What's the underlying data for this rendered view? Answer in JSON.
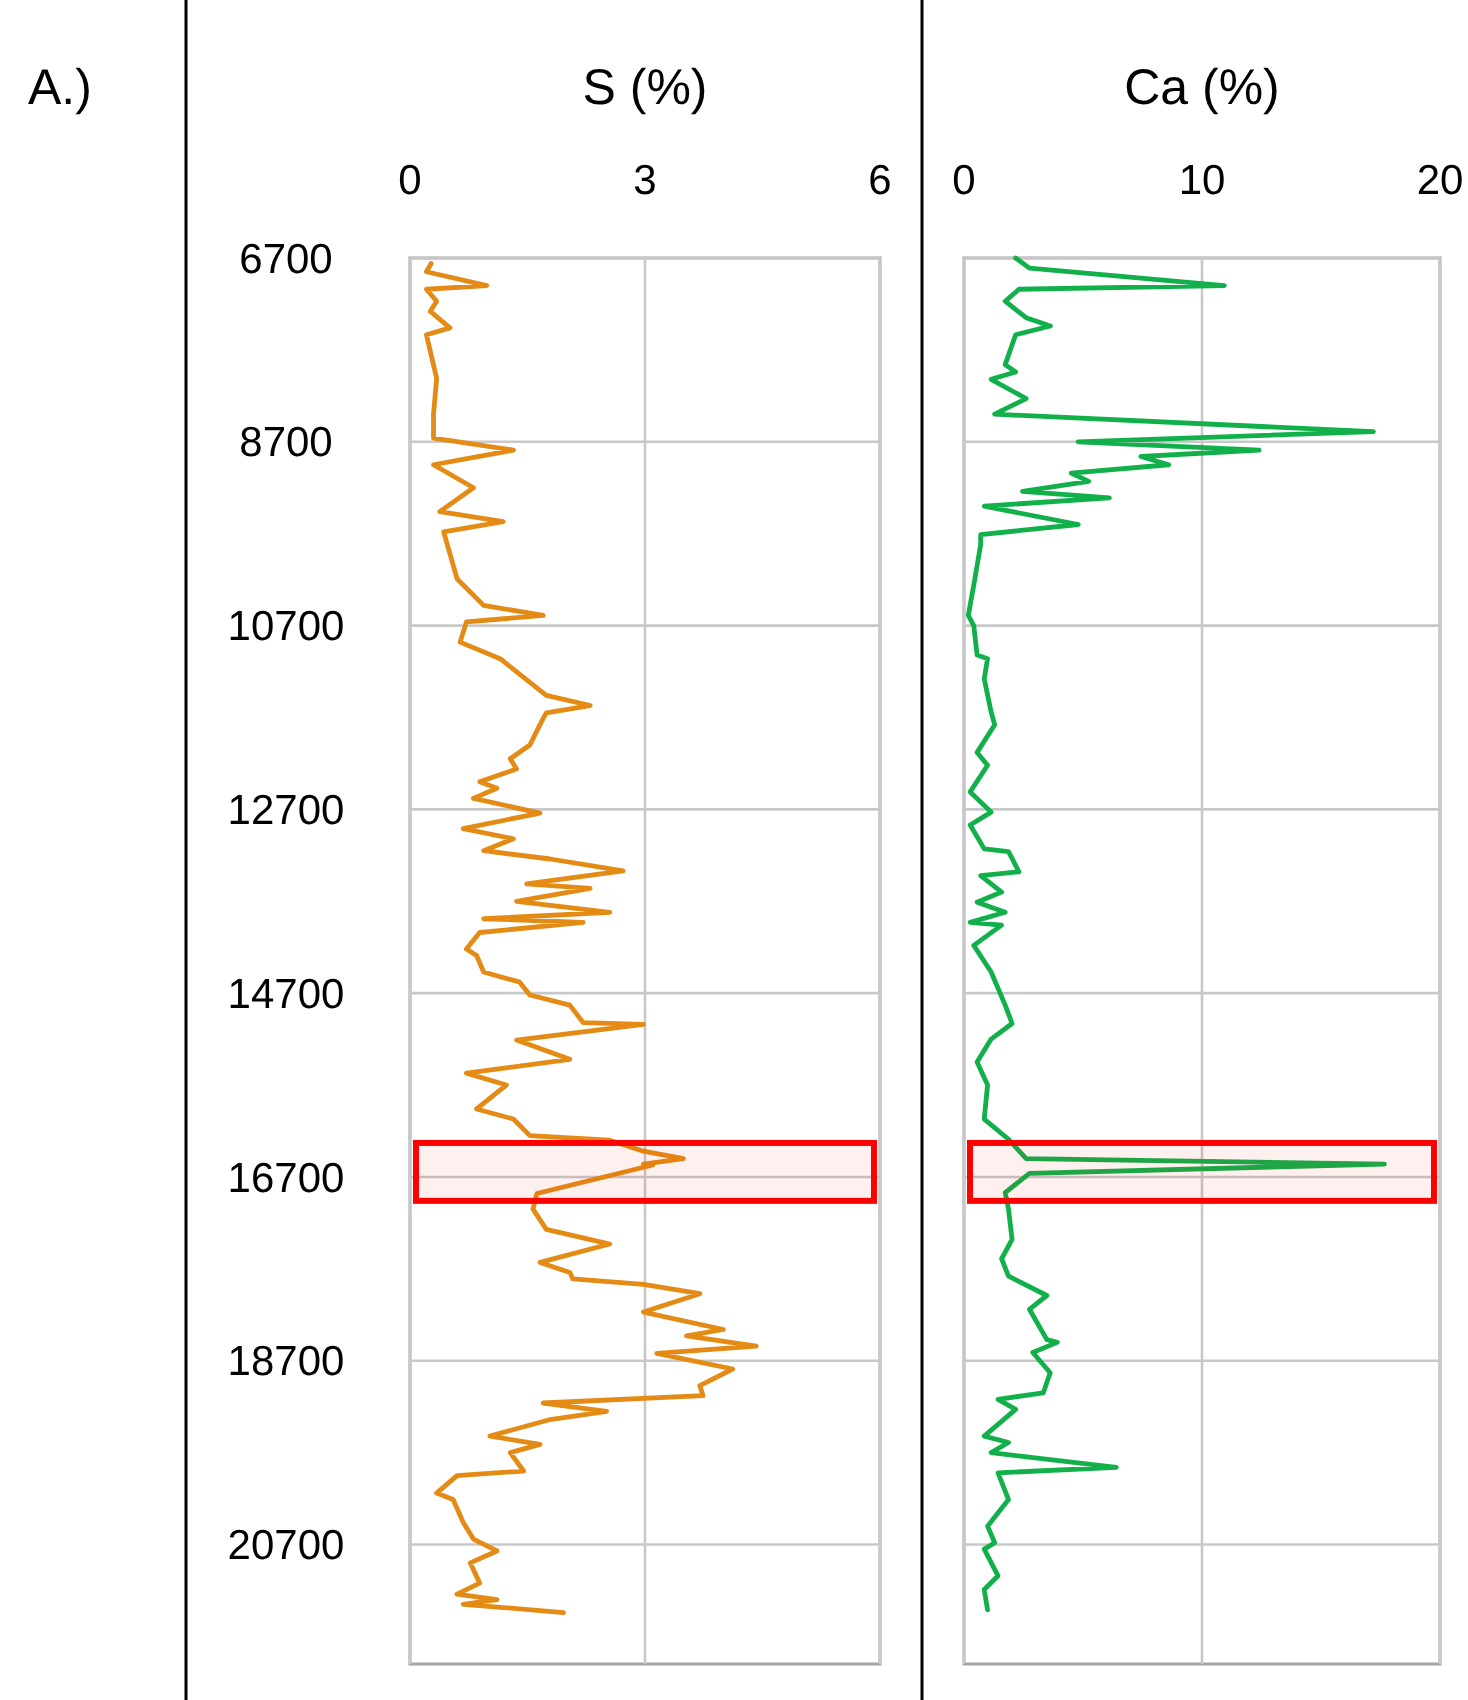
{
  "chart_data": [
    {
      "type": "line",
      "xlabel": "S (%)",
      "annotations": [
        "A.)"
      ],
      "xlim": [
        0,
        6
      ],
      "xticks": [
        0,
        3,
        6
      ],
      "ylim": [
        22000,
        6700
      ],
      "yticks": [
        6700,
        8700,
        10700,
        12700,
        14700,
        16700,
        18700,
        20700
      ],
      "grid": true,
      "bands": [
        {
          "axis": "y",
          "from": 16330,
          "to": 16960,
          "color": "#ff0000"
        }
      ],
      "series": [
        {
          "color": "#e38b14",
          "x": [
            0.27,
            0.21,
            0.98,
            0.21,
            0.34,
            0.26,
            0.51,
            0.21,
            0.34,
            0.3,
            0.3,
            1.32,
            0.3,
            0.81,
            0.38,
            1.19,
            0.43,
            0.6,
            0.94,
            1.7,
            0.72,
            0.64,
            1.15,
            1.74,
            2.3,
            1.74,
            1.7,
            1.53,
            1.28,
            1.36,
            0.89,
            1.11,
            0.81,
            1.66,
            0.68,
            1.32,
            0.94,
            1.79,
            2.72,
            1.49,
            2.3,
            1.36,
            2.55,
            0.94,
            2.21,
            0.89,
            0.72,
            0.85,
            0.94,
            1.4,
            1.53,
            2.04,
            2.21,
            2.98,
            1.36,
            2.04,
            0.72,
            1.23,
            0.85,
            1.32,
            1.53,
            2.55,
            2.98,
            3.49,
            2.98,
            3.1,
            1.62,
            1.57,
            1.74,
            2.55,
            1.66,
            2.04,
            2.08,
            2.98,
            3.7,
            2.98,
            4.0,
            3.53,
            4.42,
            3.15,
            4.12,
            3.7,
            3.74,
            1.7,
            2.51,
            1.79,
            1.02,
            1.66,
            1.28,
            1.45,
            0.6,
            0.34,
            0.55,
            0.68,
            0.81,
            1.11,
            0.77,
            0.89,
            0.6,
            1.11,
            0.68,
            1.96
          ],
          "values": [
            6760,
            6850,
            7000,
            7040,
            7170,
            7280,
            7460,
            7535,
            8010,
            8400,
            8660,
            8790,
            8950,
            9200,
            9460,
            9570,
            9680,
            10190,
            10480,
            10590,
            10660,
            10880,
            11060,
            11460,
            11570,
            11650,
            11710,
            12000,
            12150,
            12260,
            12400,
            12470,
            12580,
            12740,
            12910,
            13020,
            13150,
            13240,
            13370,
            13510,
            13560,
            13700,
            13820,
            13890,
            13930,
            14040,
            14220,
            14290,
            14470,
            14580,
            14720,
            14830,
            15020,
            15040,
            15210,
            15420,
            15570,
            15700,
            15960,
            16070,
            16250,
            16300,
            16420,
            16500,
            16560,
            16570,
            16880,
            17050,
            17270,
            17430,
            17630,
            17740,
            17810,
            17870,
            17970,
            18170,
            18360,
            18430,
            18540,
            18620,
            18790,
            18970,
            19080,
            19160,
            19250,
            19340,
            19520,
            19610,
            19700,
            19900,
            19950,
            20140,
            20210,
            20460,
            20640,
            20770,
            20900,
            21120,
            21240,
            21300,
            21350,
            21440
          ]
        }
      ]
    },
    {
      "type": "line",
      "xlabel": "Ca (%)",
      "xlim": [
        0,
        20
      ],
      "xticks": [
        0,
        10,
        20
      ],
      "ylim": [
        22000,
        6700
      ],
      "yticks": [
        6700,
        8700,
        10700,
        12700,
        14700,
        16700,
        18700,
        20700
      ],
      "tick_labels": "x",
      "grid": true,
      "bands": [
        {
          "axis": "y",
          "from": 16330,
          "to": 16960,
          "color": "#ff0000"
        }
      ],
      "series": [
        {
          "color": "#12b04a",
          "x": [
            2.17,
            2.75,
            10.94,
            2.31,
            1.73,
            2.61,
            3.63,
            2.17,
            1.73,
            2.17,
            1.14,
            2.61,
            1.29,
            17.2,
            4.8,
            12.4,
            7.43,
            8.6,
            4.5,
            5.24,
            2.46,
            6.11,
            0.85,
            4.8,
            0.7,
            0.7,
            0.41,
            0.18,
            0.41,
            0.55,
            0.99,
            0.85,
            1.14,
            1.29,
            0.55,
            0.99,
            0.26,
            1.14,
            0.26,
            0.85,
            1.87,
            2.31,
            0.7,
            1.58,
            0.55,
            1.73,
            0.26,
            1.58,
            0.41,
            1.14,
            1.73,
            2.02,
            1.14,
            0.55,
            0.99,
            0.85,
            1.87,
            2.61,
            17.66,
            2.75,
            1.73,
            1.87,
            2.02,
            1.58,
            1.87,
            3.48,
            2.75,
            3.48,
            3.92,
            2.89,
            3.62,
            3.33,
            1.43,
            2.17,
            0.85,
            1.87,
            1.14,
            6.4,
            1.43,
            1.87,
            0.99,
            1.29,
            0.85,
            1.43,
            0.85,
            0.99
          ],
          "values": [
            6700,
            6810,
            7000,
            7040,
            7170,
            7350,
            7440,
            7535,
            7860,
            7940,
            8020,
            8230,
            8400,
            8590,
            8700,
            8790,
            8860,
            8950,
            9040,
            9130,
            9240,
            9310,
            9400,
            9600,
            9710,
            9820,
            10260,
            10590,
            10700,
            11020,
            11060,
            11280,
            11640,
            11780,
            12080,
            12220,
            12510,
            12730,
            12870,
            13130,
            13160,
            13380,
            13420,
            13600,
            13710,
            13820,
            13930,
            13960,
            14180,
            14470,
            14830,
            15030,
            15200,
            15450,
            15700,
            16070,
            16290,
            16500,
            16560,
            16660,
            16870,
            17050,
            17380,
            17590,
            17780,
            17990,
            18140,
            18470,
            18500,
            18610,
            18830,
            19050,
            19120,
            19230,
            19520,
            19590,
            19700,
            19860,
            19920,
            20210,
            20500,
            20680,
            20750,
            21040,
            21190,
            21410
          ]
        }
      ]
    }
  ]
}
